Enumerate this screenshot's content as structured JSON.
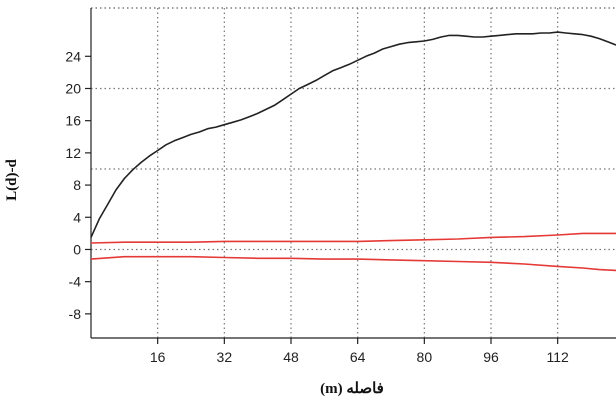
{
  "chart_data": {
    "type": "line",
    "title": "",
    "xlabel": "فاصله (m)",
    "ylabel": "L(d)-d",
    "xlim": [
      0,
      126
    ],
    "ylim": [
      -11,
      30
    ],
    "x_ticks": [
      16,
      32,
      48,
      64,
      80,
      96,
      112
    ],
    "y_ticks": [
      -8,
      -4,
      0,
      4,
      8,
      12,
      16,
      20,
      24
    ],
    "grid": true,
    "series": [
      {
        "color": "#222222",
        "x": [
          0,
          2,
          4,
          6,
          8,
          10,
          12,
          14,
          16,
          18,
          20,
          22,
          24,
          26,
          28,
          30,
          32,
          34,
          36,
          38,
          40,
          42,
          44,
          46,
          48,
          50,
          52,
          54,
          56,
          58,
          60,
          62,
          64,
          66,
          68,
          70,
          72,
          74,
          76,
          78,
          80,
          82,
          84,
          86,
          88,
          90,
          92,
          94,
          96,
          98,
          100,
          102,
          104,
          106,
          108,
          110,
          112,
          114,
          116,
          118,
          120,
          122,
          124,
          126
        ],
        "values": [
          1.5,
          3.8,
          5.6,
          7.4,
          8.8,
          9.9,
          10.8,
          11.6,
          12.3,
          13.0,
          13.5,
          13.9,
          14.3,
          14.6,
          15.0,
          15.2,
          15.5,
          15.8,
          16.1,
          16.5,
          16.9,
          17.4,
          17.9,
          18.6,
          19.3,
          20.0,
          20.5,
          21.0,
          21.6,
          22.2,
          22.6,
          23.0,
          23.5,
          24.0,
          24.4,
          24.9,
          25.2,
          25.5,
          25.7,
          25.8,
          25.9,
          26.1,
          26.4,
          26.6,
          26.6,
          26.5,
          26.4,
          26.4,
          26.5,
          26.6,
          26.7,
          26.8,
          26.8,
          26.8,
          26.9,
          26.9,
          27.0,
          26.9,
          26.8,
          26.7,
          26.5,
          26.2,
          25.8,
          25.4
        ]
      },
      {
        "color": "#e53935",
        "x": [
          0,
          8,
          16,
          24,
          32,
          40,
          48,
          56,
          64,
          72,
          80,
          88,
          96,
          104,
          112,
          118,
          122,
          126
        ],
        "values": [
          0.8,
          0.9,
          0.9,
          0.9,
          1.0,
          1.0,
          1.0,
          1.0,
          1.0,
          1.1,
          1.2,
          1.3,
          1.5,
          1.6,
          1.8,
          2.0,
          2.0,
          2.0
        ]
      },
      {
        "color": "#e53935",
        "x": [
          0,
          8,
          16,
          24,
          32,
          40,
          48,
          56,
          64,
          72,
          80,
          88,
          96,
          104,
          112,
          118,
          122,
          126
        ],
        "values": [
          -1.2,
          -0.9,
          -0.9,
          -0.9,
          -1.0,
          -1.1,
          -1.1,
          -1.2,
          -1.2,
          -1.3,
          -1.4,
          -1.5,
          -1.6,
          -1.8,
          -2.1,
          -2.3,
          -2.5,
          -2.6
        ]
      }
    ]
  }
}
